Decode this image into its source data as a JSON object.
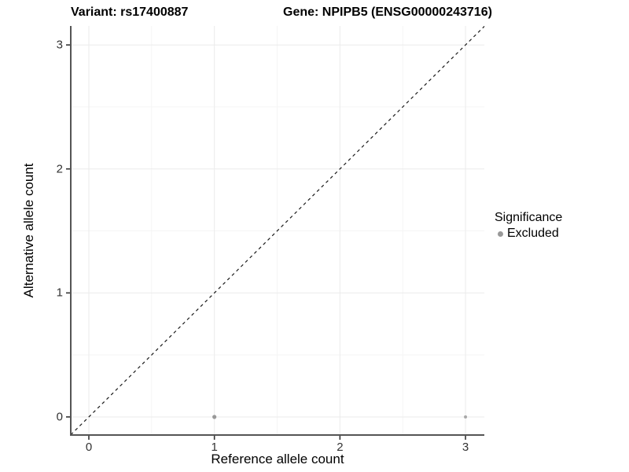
{
  "titles": {
    "variant": "Variant: rs17400887",
    "gene": "Gene: NPIPB5 (ENSG00000243716)"
  },
  "axes": {
    "xlabel": "Reference allele count",
    "ylabel": "Alternative allele count"
  },
  "legend": {
    "title": "Significance",
    "entries": [
      {
        "label": "Excluded",
        "color": "#999999"
      }
    ]
  },
  "chart_data": {
    "type": "scatter",
    "title_left": "Variant: rs17400887",
    "title_right": "Gene: NPIPB5 (ENSG00000243716)",
    "xlabel": "Reference allele count",
    "ylabel": "Alternative allele count",
    "xlim": [
      -0.144,
      3.15
    ],
    "ylim": [
      -0.146,
      3.153
    ],
    "x_ticks": [
      0,
      1,
      2,
      3
    ],
    "y_ticks": [
      0,
      1,
      2,
      3
    ],
    "x_minor_ticks": [
      0.5,
      1.5,
      2.5
    ],
    "y_minor_ticks": [
      0.5,
      1.5,
      2.5
    ],
    "grid": "major+minor",
    "legend_position": "right",
    "reference_line": {
      "kind": "identity",
      "slope": 1,
      "intercept": 0,
      "style": "dashed",
      "color": "#1a1a1a"
    },
    "series": [
      {
        "name": "Excluded",
        "color": "#999999",
        "points": [
          {
            "x": 1,
            "y": 0,
            "r": 2.6,
            "color": "#999999"
          },
          {
            "x": 3,
            "y": 0,
            "r": 2.0,
            "color": "#a8a8a8"
          }
        ]
      }
    ],
    "style": {
      "panel_bg": "#ffffff",
      "grid_major_color": "#ebebeb",
      "grid_minor_color": "#f5f5f5",
      "axis_line_color": "#555555",
      "tick_mark_color": "#333333",
      "tick_label_color": "#333333"
    }
  }
}
